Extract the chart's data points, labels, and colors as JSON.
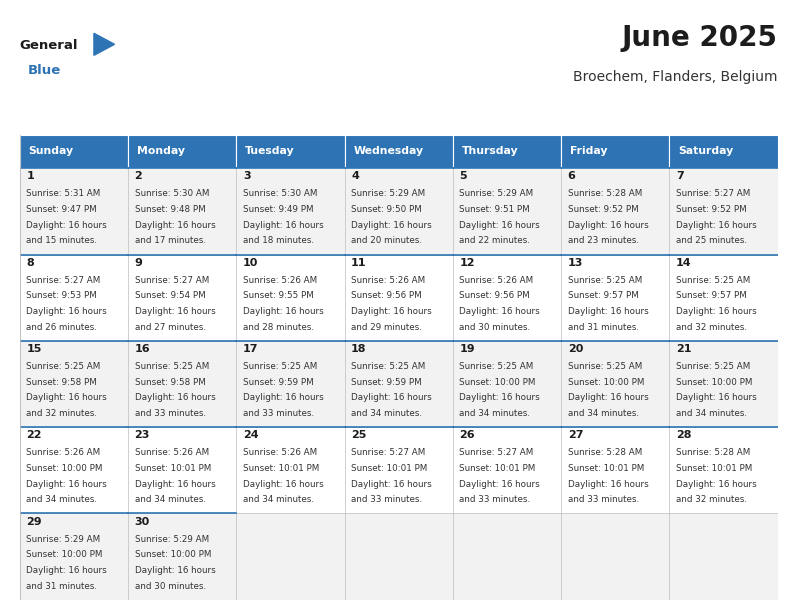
{
  "title": "June 2025",
  "subtitle": "Broechem, Flanders, Belgium",
  "header_color": "#2E74B5",
  "header_text_color": "#FFFFFF",
  "days_of_week": [
    "Sunday",
    "Monday",
    "Tuesday",
    "Wednesday",
    "Thursday",
    "Friday",
    "Saturday"
  ],
  "bg_color": "#FFFFFF",
  "row_alt_color": "#F2F2F2",
  "cell_border_color": "#BBBBBB",
  "week_divider_color": "#2E74B5",
  "calendar": [
    [
      {
        "day": 1,
        "sunrise": "5:31 AM",
        "sunset": "9:47 PM",
        "daylight": "16 hours",
        "daylight2": "and 15 minutes."
      },
      {
        "day": 2,
        "sunrise": "5:30 AM",
        "sunset": "9:48 PM",
        "daylight": "16 hours",
        "daylight2": "and 17 minutes."
      },
      {
        "day": 3,
        "sunrise": "5:30 AM",
        "sunset": "9:49 PM",
        "daylight": "16 hours",
        "daylight2": "and 18 minutes."
      },
      {
        "day": 4,
        "sunrise": "5:29 AM",
        "sunset": "9:50 PM",
        "daylight": "16 hours",
        "daylight2": "and 20 minutes."
      },
      {
        "day": 5,
        "sunrise": "5:29 AM",
        "sunset": "9:51 PM",
        "daylight": "16 hours",
        "daylight2": "and 22 minutes."
      },
      {
        "day": 6,
        "sunrise": "5:28 AM",
        "sunset": "9:52 PM",
        "daylight": "16 hours",
        "daylight2": "and 23 minutes."
      },
      {
        "day": 7,
        "sunrise": "5:27 AM",
        "sunset": "9:52 PM",
        "daylight": "16 hours",
        "daylight2": "and 25 minutes."
      }
    ],
    [
      {
        "day": 8,
        "sunrise": "5:27 AM",
        "sunset": "9:53 PM",
        "daylight": "16 hours",
        "daylight2": "and 26 minutes."
      },
      {
        "day": 9,
        "sunrise": "5:27 AM",
        "sunset": "9:54 PM",
        "daylight": "16 hours",
        "daylight2": "and 27 minutes."
      },
      {
        "day": 10,
        "sunrise": "5:26 AM",
        "sunset": "9:55 PM",
        "daylight": "16 hours",
        "daylight2": "and 28 minutes."
      },
      {
        "day": 11,
        "sunrise": "5:26 AM",
        "sunset": "9:56 PM",
        "daylight": "16 hours",
        "daylight2": "and 29 minutes."
      },
      {
        "day": 12,
        "sunrise": "5:26 AM",
        "sunset": "9:56 PM",
        "daylight": "16 hours",
        "daylight2": "and 30 minutes."
      },
      {
        "day": 13,
        "sunrise": "5:25 AM",
        "sunset": "9:57 PM",
        "daylight": "16 hours",
        "daylight2": "and 31 minutes."
      },
      {
        "day": 14,
        "sunrise": "5:25 AM",
        "sunset": "9:57 PM",
        "daylight": "16 hours",
        "daylight2": "and 32 minutes."
      }
    ],
    [
      {
        "day": 15,
        "sunrise": "5:25 AM",
        "sunset": "9:58 PM",
        "daylight": "16 hours",
        "daylight2": "and 32 minutes."
      },
      {
        "day": 16,
        "sunrise": "5:25 AM",
        "sunset": "9:58 PM",
        "daylight": "16 hours",
        "daylight2": "and 33 minutes."
      },
      {
        "day": 17,
        "sunrise": "5:25 AM",
        "sunset": "9:59 PM",
        "daylight": "16 hours",
        "daylight2": "and 33 minutes."
      },
      {
        "day": 18,
        "sunrise": "5:25 AM",
        "sunset": "9:59 PM",
        "daylight": "16 hours",
        "daylight2": "and 34 minutes."
      },
      {
        "day": 19,
        "sunrise": "5:25 AM",
        "sunset": "10:00 PM",
        "daylight": "16 hours",
        "daylight2": "and 34 minutes."
      },
      {
        "day": 20,
        "sunrise": "5:25 AM",
        "sunset": "10:00 PM",
        "daylight": "16 hours",
        "daylight2": "and 34 minutes."
      },
      {
        "day": 21,
        "sunrise": "5:25 AM",
        "sunset": "10:00 PM",
        "daylight": "16 hours",
        "daylight2": "and 34 minutes."
      }
    ],
    [
      {
        "day": 22,
        "sunrise": "5:26 AM",
        "sunset": "10:00 PM",
        "daylight": "16 hours",
        "daylight2": "and 34 minutes."
      },
      {
        "day": 23,
        "sunrise": "5:26 AM",
        "sunset": "10:01 PM",
        "daylight": "16 hours",
        "daylight2": "and 34 minutes."
      },
      {
        "day": 24,
        "sunrise": "5:26 AM",
        "sunset": "10:01 PM",
        "daylight": "16 hours",
        "daylight2": "and 34 minutes."
      },
      {
        "day": 25,
        "sunrise": "5:27 AM",
        "sunset": "10:01 PM",
        "daylight": "16 hours",
        "daylight2": "and 33 minutes."
      },
      {
        "day": 26,
        "sunrise": "5:27 AM",
        "sunset": "10:01 PM",
        "daylight": "16 hours",
        "daylight2": "and 33 minutes."
      },
      {
        "day": 27,
        "sunrise": "5:28 AM",
        "sunset": "10:01 PM",
        "daylight": "16 hours",
        "daylight2": "and 33 minutes."
      },
      {
        "day": 28,
        "sunrise": "5:28 AM",
        "sunset": "10:01 PM",
        "daylight": "16 hours",
        "daylight2": "and 32 minutes."
      }
    ],
    [
      {
        "day": 29,
        "sunrise": "5:29 AM",
        "sunset": "10:00 PM",
        "daylight": "16 hours",
        "daylight2": "and 31 minutes."
      },
      {
        "day": 30,
        "sunrise": "5:29 AM",
        "sunset": "10:00 PM",
        "daylight": "16 hours",
        "daylight2": "and 30 minutes."
      },
      null,
      null,
      null,
      null,
      null
    ]
  ],
  "figsize": [
    7.92,
    6.12
  ],
  "dpi": 100
}
